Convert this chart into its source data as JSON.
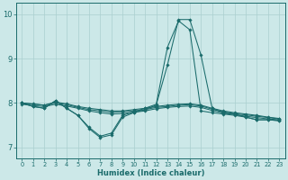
{
  "xlabel": "Humidex (Indice chaleur)",
  "ylabel": "",
  "background_color": "#cce8e8",
  "line_color": "#1a6b6b",
  "grid_color": "#aacfcf",
  "xlim": [
    -0.5,
    23.5
  ],
  "ylim": [
    6.75,
    10.25
  ],
  "yticks": [
    7,
    8,
    9,
    10
  ],
  "xticks": [
    0,
    1,
    2,
    3,
    4,
    5,
    6,
    7,
    8,
    9,
    10,
    11,
    12,
    13,
    14,
    15,
    16,
    17,
    18,
    19,
    20,
    21,
    22,
    23
  ],
  "lines": [
    {
      "x": [
        0,
        1,
        2,
        3,
        4,
        5,
        6,
        7,
        8,
        9,
        10,
        11,
        12,
        13,
        14,
        15,
        16,
        17,
        18,
        19,
        20,
        21,
        22,
        23
      ],
      "y": [
        8.0,
        7.92,
        7.88,
        8.05,
        7.88,
        7.72,
        7.42,
        7.22,
        7.28,
        7.68,
        7.78,
        7.85,
        7.95,
        8.85,
        9.88,
        9.88,
        9.08,
        7.88,
        7.78,
        7.75,
        7.68,
        7.62,
        7.62,
        7.6
      ]
    },
    {
      "x": [
        0,
        1,
        2,
        3,
        4,
        5,
        6,
        7,
        8,
        9,
        10,
        11,
        12,
        13,
        14,
        15,
        16,
        17,
        18,
        19,
        20,
        21,
        22,
        23
      ],
      "y": [
        8.0,
        7.92,
        7.88,
        8.05,
        7.88,
        7.72,
        7.45,
        7.25,
        7.32,
        7.72,
        7.8,
        7.88,
        7.97,
        9.25,
        9.85,
        9.65,
        7.82,
        7.78,
        7.75,
        7.72,
        7.68,
        7.62,
        7.62,
        7.6
      ]
    },
    {
      "x": [
        0,
        1,
        2,
        3,
        4,
        5,
        6,
        7,
        8,
        9,
        10,
        11,
        12,
        13,
        14,
        15,
        16,
        17,
        18,
        19,
        20,
        21,
        22,
        23
      ],
      "y": [
        8.0,
        7.98,
        7.95,
        8.02,
        7.98,
        7.92,
        7.88,
        7.85,
        7.82,
        7.82,
        7.85,
        7.88,
        7.92,
        7.95,
        7.97,
        7.98,
        7.95,
        7.88,
        7.82,
        7.78,
        7.75,
        7.72,
        7.68,
        7.65
      ]
    },
    {
      "x": [
        0,
        1,
        2,
        3,
        4,
        5,
        6,
        7,
        8,
        9,
        10,
        11,
        12,
        13,
        14,
        15,
        16,
        17,
        18,
        19,
        20,
        21,
        22,
        23
      ],
      "y": [
        8.0,
        7.97,
        7.95,
        8.0,
        7.96,
        7.9,
        7.85,
        7.82,
        7.79,
        7.8,
        7.82,
        7.85,
        7.9,
        7.92,
        7.95,
        7.96,
        7.93,
        7.86,
        7.8,
        7.76,
        7.73,
        7.7,
        7.67,
        7.64
      ]
    },
    {
      "x": [
        0,
        1,
        2,
        3,
        4,
        5,
        6,
        7,
        8,
        9,
        10,
        11,
        12,
        13,
        14,
        15,
        16,
        17,
        18,
        19,
        20,
        21,
        22,
        23
      ],
      "y": [
        7.97,
        7.94,
        7.92,
        7.97,
        7.93,
        7.88,
        7.82,
        7.78,
        7.75,
        7.76,
        7.79,
        7.82,
        7.87,
        7.9,
        7.92,
        7.93,
        7.9,
        7.83,
        7.77,
        7.74,
        7.7,
        7.67,
        7.64,
        7.62
      ]
    }
  ]
}
